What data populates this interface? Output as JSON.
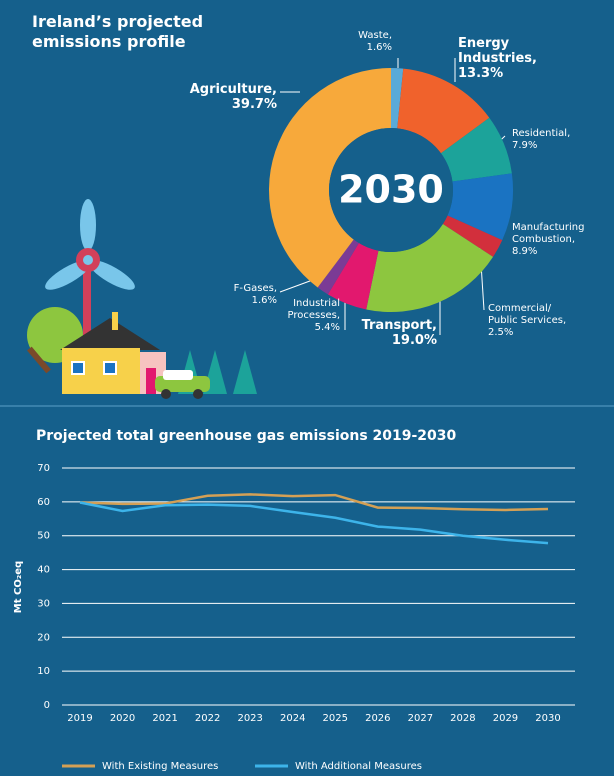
{
  "chart_data": [
    {
      "type": "pie",
      "title": "Ireland’s projected emissions profile",
      "center_label": "2030",
      "categories": [
        "Waste,",
        "Energy Industries,",
        "Residential,",
        "Manufacturing Combustion,",
        "Commercial/ Public Services,",
        "Transport,",
        "Industrial Processes,",
        "F-Gases,",
        "Agriculture,"
      ],
      "values": [
        1.6,
        13.3,
        7.9,
        8.9,
        2.5,
        19.0,
        5.4,
        1.6,
        39.7
      ],
      "value_labels": [
        "1.6%",
        "13.3%",
        "7.9%",
        "8.9%",
        "2.5%",
        "19.0%",
        "5.4%",
        "1.6%",
        "39.7%"
      ],
      "colors": [
        "#5aaad8",
        "#f0622c",
        "#1ca39a",
        "#1a73c2",
        "#d22f3c",
        "#8dc63f",
        "#e2186e",
        "#7b3b95",
        "#f7a93b"
      ]
    },
    {
      "type": "line",
      "title": "Projected total greenhouse gas emissions 2019-2030",
      "y_label": "Mt CO₂eq",
      "x": [
        2019,
        2020,
        2021,
        2022,
        2023,
        2024,
        2025,
        2026,
        2027,
        2028,
        2029,
        2030
      ],
      "xlim": [
        2019,
        2030
      ],
      "xticks": [
        2019,
        2020,
        2021,
        2022,
        2023,
        2024,
        2025,
        2026,
        2027,
        2028,
        2029,
        2030
      ],
      "ylim": [
        0,
        70
      ],
      "yticks": [
        0,
        10,
        20,
        30,
        40,
        50,
        60,
        70
      ],
      "grid": true,
      "legend": "bottom",
      "series": [
        {
          "name": "With Existing Measures",
          "color": "#d4a055",
          "values": [
            59.8,
            59.4,
            59.5,
            61.8,
            62.2,
            61.7,
            62.0,
            58.3,
            58.2,
            57.8,
            57.6,
            57.9
          ]
        },
        {
          "name": "With Additional Measures",
          "color": "#3db4ea",
          "values": [
            59.8,
            57.3,
            59.0,
            59.2,
            58.8,
            57.0,
            55.3,
            52.7,
            51.8,
            50.0,
            48.8,
            47.8
          ]
        }
      ]
    }
  ]
}
